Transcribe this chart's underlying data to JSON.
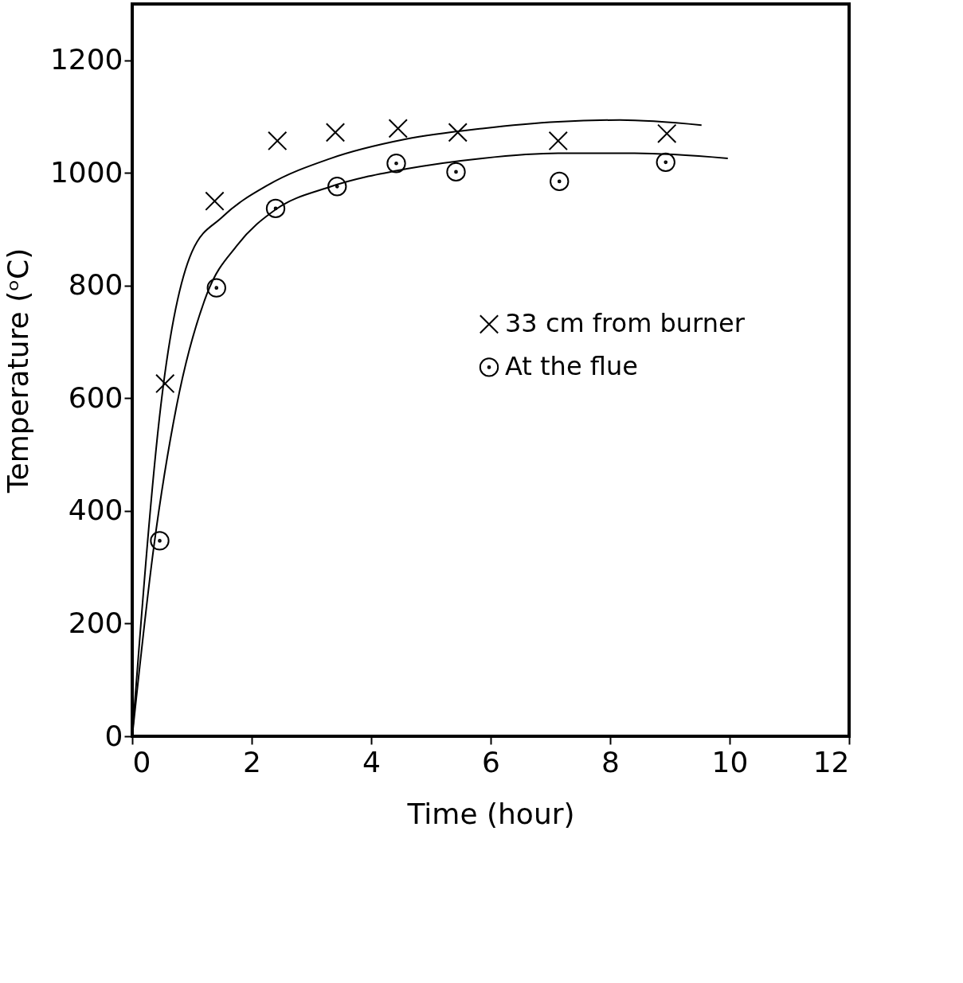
{
  "chart_data": {
    "type": "scatter",
    "xlabel": "Time (hour)",
    "ylabel": "Temperature (ᵒC)",
    "xlim": [
      0,
      12
    ],
    "ylim": [
      0,
      1300
    ],
    "xticks": [
      0,
      2,
      4,
      6,
      8,
      10,
      12
    ],
    "yticks": [
      0,
      200,
      400,
      600,
      800,
      1000,
      1200
    ],
    "grid": false,
    "legend": "right",
    "series": [
      {
        "name": "33 cm from burner",
        "marker": "cross",
        "color": "#000000",
        "x": [
          0.55,
          1.38,
          2.43,
          3.4,
          4.45,
          5.45,
          7.13,
          8.95
        ],
        "values": [
          626,
          950,
          1057,
          1072,
          1079,
          1072,
          1057,
          1070
        ]
      },
      {
        "name": "At the flue",
        "marker": "circle",
        "color": "#000000",
        "x": [
          0.46,
          1.41,
          2.4,
          3.43,
          4.42,
          5.42,
          7.15,
          8.93
        ],
        "values": [
          347,
          796,
          937,
          976,
          1017,
          1002,
          985,
          1019
        ]
      },
      {
        "type": "line",
        "color": "#000000",
        "x": [
          0,
          0.49,
          1.0,
          1.51,
          2.28,
          3.3,
          4.58,
          5.86,
          7.13,
          8.16,
          9.53
        ],
        "values": [
          0,
          597,
          860,
          922,
          979,
          1025,
          1060,
          1079,
          1091,
          1094,
          1085
        ]
      },
      {
        "type": "line",
        "color": "#000000",
        "x": [
          0,
          0.36,
          0.74,
          1.25,
          1.76,
          2.4,
          3.3,
          4.58,
          5.86,
          7.13,
          8.41,
          9.97
        ],
        "values": [
          0,
          335,
          585,
          785,
          872,
          935,
          975,
          1007,
          1026,
          1035,
          1035,
          1026
        ]
      }
    ]
  }
}
